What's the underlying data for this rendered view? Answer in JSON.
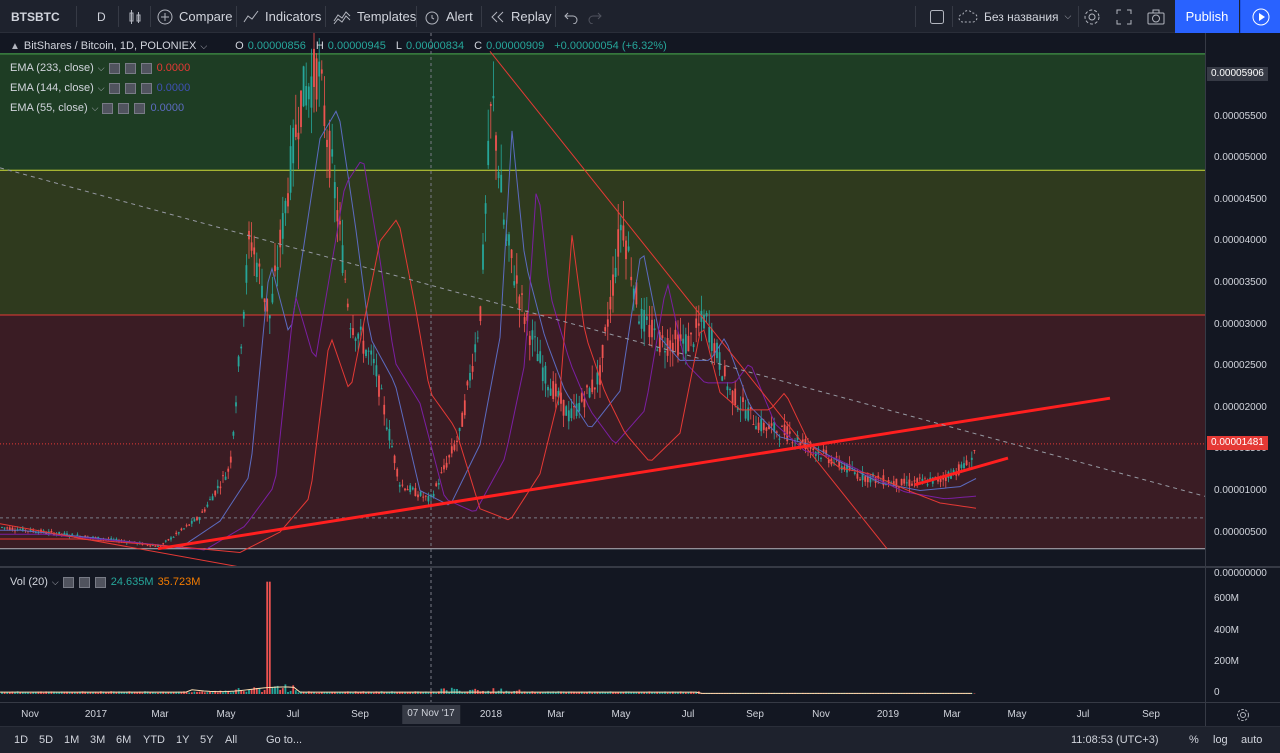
{
  "toolbar": {
    "symbol": "BTSBTC",
    "interval": "D",
    "compare": "Compare",
    "indicators": "Indicators",
    "templates": "Templates",
    "alert": "Alert",
    "replay": "Replay",
    "layout_name": "Без названия",
    "publish": "Publish"
  },
  "legend": {
    "title": "BitShares / Bitcoin, 1D, POLONIEX",
    "o_label": "O",
    "o_value": "0.00000856",
    "h_label": "H",
    "h_value": "0.00000945",
    "l_label": "L",
    "l_value": "0.00000834",
    "c_label": "C",
    "c_value": "0.00000909",
    "change": "+0.00000054 (+6.32%)",
    "ema233_label": "EMA (233, close)",
    "ema233_value": "0.0000",
    "ema144_label": "EMA (144, close)",
    "ema144_value": "0.0000",
    "ema55_label": "EMA (55, close)",
    "ema55_value": "0.0000",
    "vol_label": "Vol (20)",
    "vol_value1": "24.635M",
    "vol_value2": "35.723M"
  },
  "price_axis": [
    "0.00006000",
    "0.00005500",
    "0.00005000",
    "0.00004500",
    "0.00004000",
    "0.00003500",
    "0.00003000",
    "0.00002500",
    "0.00002000",
    "0.00001500",
    "0.00001000",
    "0.00000500",
    "0.00000000"
  ],
  "tags": {
    "top_price": "0.00005906",
    "last_price": "0.00001481"
  },
  "vol_axis": [
    "600M",
    "400M",
    "200M",
    "0"
  ],
  "time_axis": [
    "Nov",
    "2017",
    "Mar",
    "May",
    "Jul",
    "Sep",
    "2018",
    "Mar",
    "May",
    "Jul",
    "Sep",
    "Nov",
    "2019",
    "Mar",
    "May",
    "Jul",
    "Sep"
  ],
  "crosshair_date": "07 Nov '17",
  "bottom": {
    "ranges": [
      "1D",
      "5D",
      "1M",
      "3M",
      "6M",
      "YTD",
      "1Y",
      "5Y",
      "All"
    ],
    "goto": "Go to...",
    "clock": "11:08:53 (UTC+3)",
    "percent": "%",
    "log": "log",
    "auto": "auto"
  },
  "colors": {
    "bg": "#131722",
    "green_zone": "#1e3d24",
    "olive_zone": "#2f3a1e",
    "red_zone": "#3a1c24",
    "trend": "#ff1f1f",
    "accent": "#2962ff"
  },
  "chart_data": {
    "type": "candlestick",
    "ylim": [
      0,
      6e-05
    ],
    "series": [
      {
        "name": "BitShares / Bitcoin",
        "x": [
          "2016-11",
          "2017-01",
          "2017-03",
          "2017-05",
          "2017-06",
          "2017-07",
          "2017-08",
          "2017-09",
          "2017-11",
          "2018-01",
          "2018-02",
          "2018-03",
          "2018-05",
          "2018-06",
          "2018-07",
          "2018-09",
          "2018-11",
          "2019-01",
          "2019-03"
        ],
        "y": [
          4.5e-06,
          3.5e-06,
          2.5e-06,
          2.5e-05,
          4.5e-05,
          5.8e-05,
          4.2e-05,
          3e-05,
          8e-06,
          4.8e-05,
          3e-05,
          1.8e-05,
          4e-05,
          2.8e-05,
          2.6e-05,
          1.6e-05,
          1.2e-05,
          1e-05,
          1.48e-05
        ]
      }
    ]
  }
}
